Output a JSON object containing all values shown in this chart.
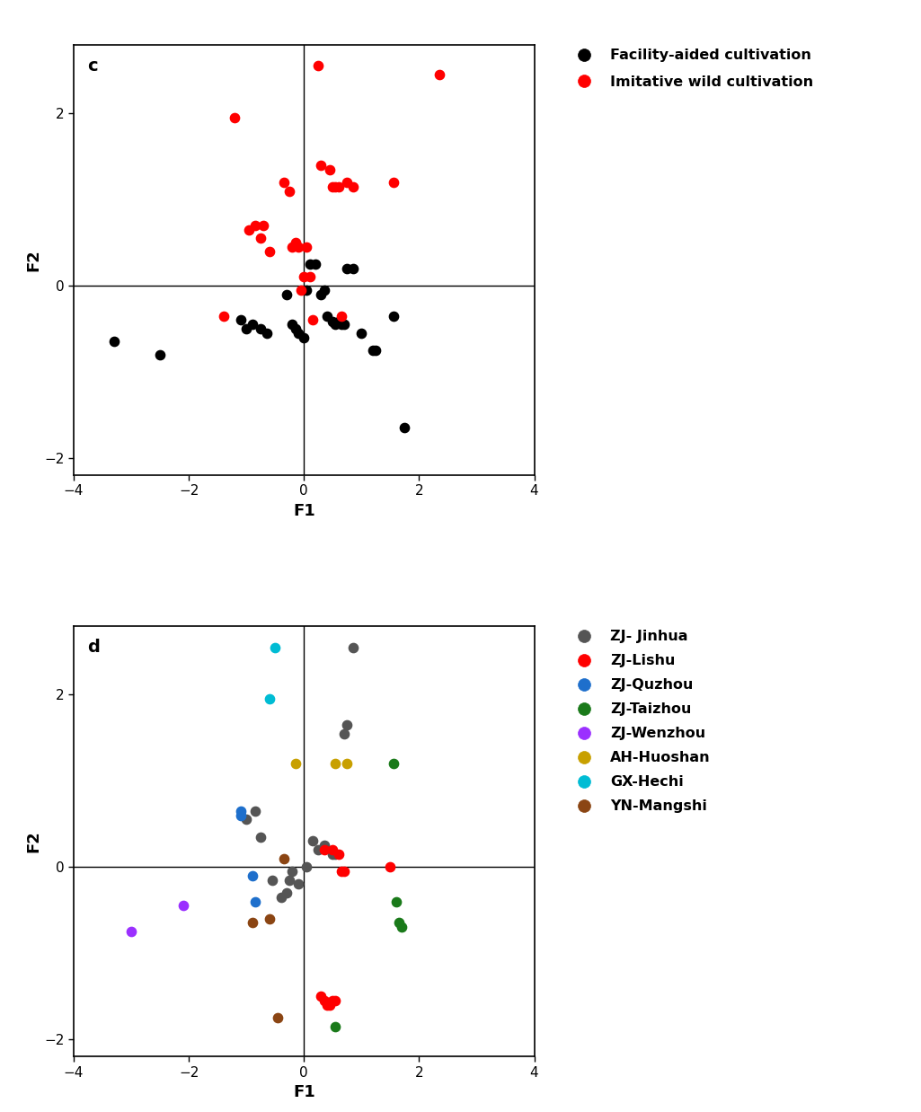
{
  "plot_c": {
    "title": "c",
    "xlabel": "F1",
    "ylabel": "F2",
    "xlim": [
      -4,
      4
    ],
    "ylim": [
      -2.2,
      2.8
    ],
    "xticks": [
      -4,
      -2,
      0,
      2,
      4
    ],
    "yticks": [
      -2,
      0,
      2
    ],
    "black_points": [
      [
        -3.3,
        -0.65
      ],
      [
        -2.5,
        -0.8
      ],
      [
        -1.1,
        -0.4
      ],
      [
        -1.0,
        -0.5
      ],
      [
        -0.9,
        -0.45
      ],
      [
        -0.75,
        -0.5
      ],
      [
        -0.65,
        -0.55
      ],
      [
        -0.3,
        -0.1
      ],
      [
        -0.2,
        -0.45
      ],
      [
        -0.15,
        -0.5
      ],
      [
        -0.1,
        -0.55
      ],
      [
        0.0,
        -0.6
      ],
      [
        0.05,
        -0.05
      ],
      [
        0.1,
        0.25
      ],
      [
        0.2,
        0.25
      ],
      [
        0.3,
        -0.1
      ],
      [
        0.35,
        -0.05
      ],
      [
        0.4,
        -0.35
      ],
      [
        0.5,
        -0.42
      ],
      [
        0.55,
        -0.45
      ],
      [
        0.6,
        -0.42
      ],
      [
        0.65,
        -0.45
      ],
      [
        0.7,
        -0.45
      ],
      [
        0.75,
        0.2
      ],
      [
        0.85,
        0.2
      ],
      [
        1.0,
        -0.55
      ],
      [
        1.2,
        -0.75
      ],
      [
        1.25,
        -0.75
      ],
      [
        1.55,
        -0.35
      ],
      [
        1.75,
        -1.65
      ]
    ],
    "red_points": [
      [
        -1.4,
        -0.35
      ],
      [
        -1.2,
        1.95
      ],
      [
        -0.95,
        0.65
      ],
      [
        -0.85,
        0.7
      ],
      [
        -0.75,
        0.55
      ],
      [
        -0.7,
        0.7
      ],
      [
        -0.6,
        0.4
      ],
      [
        -0.35,
        1.2
      ],
      [
        -0.25,
        1.1
      ],
      [
        -0.2,
        0.45
      ],
      [
        -0.15,
        0.5
      ],
      [
        -0.1,
        0.45
      ],
      [
        -0.05,
        -0.05
      ],
      [
        0.0,
        0.1
      ],
      [
        0.05,
        0.45
      ],
      [
        0.1,
        0.1
      ],
      [
        0.15,
        -0.4
      ],
      [
        0.25,
        2.55
      ],
      [
        0.3,
        1.4
      ],
      [
        0.45,
        1.35
      ],
      [
        0.5,
        1.15
      ],
      [
        0.55,
        1.15
      ],
      [
        0.6,
        1.15
      ],
      [
        0.65,
        -0.35
      ],
      [
        0.75,
        1.2
      ],
      [
        0.85,
        1.15
      ],
      [
        1.55,
        1.2
      ],
      [
        2.35,
        2.45
      ]
    ],
    "legend_black": "Facility-aided cultivation",
    "legend_red": "Imitative wild cultivation"
  },
  "plot_d": {
    "title": "d",
    "xlabel": "F1",
    "ylabel": "F2",
    "xlim": [
      -4,
      4
    ],
    "ylim": [
      -2.2,
      2.8
    ],
    "xticks": [
      -4,
      -2,
      0,
      2,
      4
    ],
    "yticks": [
      -2,
      0,
      2
    ],
    "groups": {
      "ZJ- Jinhua": {
        "color": "#555555",
        "points": [
          [
            -1.0,
            0.55
          ],
          [
            -0.85,
            0.65
          ],
          [
            -0.75,
            0.35
          ],
          [
            -0.55,
            -0.15
          ],
          [
            -0.4,
            -0.35
          ],
          [
            -0.3,
            -0.3
          ],
          [
            -0.25,
            -0.15
          ],
          [
            -0.2,
            -0.05
          ],
          [
            -0.1,
            -0.2
          ],
          [
            0.05,
            0.0
          ],
          [
            0.15,
            0.3
          ],
          [
            0.25,
            0.2
          ],
          [
            0.35,
            0.25
          ],
          [
            0.5,
            0.15
          ],
          [
            0.55,
            0.15
          ],
          [
            0.7,
            1.55
          ],
          [
            0.75,
            1.65
          ],
          [
            0.85,
            2.55
          ]
        ]
      },
      "ZJ-Lishu": {
        "color": "#ff0000",
        "points": [
          [
            0.35,
            0.2
          ],
          [
            0.5,
            0.2
          ],
          [
            0.6,
            0.15
          ],
          [
            0.65,
            -0.05
          ],
          [
            0.7,
            -0.05
          ],
          [
            0.3,
            -1.5
          ],
          [
            0.35,
            -1.55
          ],
          [
            0.4,
            -1.6
          ],
          [
            0.45,
            -1.6
          ],
          [
            0.5,
            -1.55
          ],
          [
            0.55,
            -1.55
          ],
          [
            1.5,
            -0.0
          ]
        ]
      },
      "ZJ-Quzhou": {
        "color": "#1e6fcc",
        "points": [
          [
            -1.1,
            0.65
          ],
          [
            -1.1,
            0.6
          ],
          [
            -0.9,
            -0.1
          ],
          [
            -0.85,
            -0.4
          ]
        ]
      },
      "ZJ-Taizhou": {
        "color": "#1a7a1a",
        "points": [
          [
            1.55,
            1.2
          ],
          [
            1.6,
            -0.4
          ],
          [
            1.65,
            -0.65
          ],
          [
            1.7,
            -0.7
          ],
          [
            0.55,
            -1.85
          ]
        ]
      },
      "ZJ-Wenzhou": {
        "color": "#9b30ff",
        "points": [
          [
            -2.1,
            -0.45
          ],
          [
            -3.0,
            -0.75
          ]
        ]
      },
      "AH-Huoshan": {
        "color": "#c8a000",
        "points": [
          [
            -0.15,
            1.2
          ],
          [
            0.55,
            1.2
          ],
          [
            0.75,
            1.2
          ]
        ]
      },
      "GX-Hechi": {
        "color": "#00bcd4",
        "points": [
          [
            -0.5,
            2.55
          ],
          [
            -0.6,
            1.95
          ]
        ]
      },
      "YN-Mangshi": {
        "color": "#8b4513",
        "points": [
          [
            -0.35,
            0.1
          ],
          [
            -0.6,
            -0.6
          ],
          [
            -0.9,
            -0.65
          ],
          [
            -0.45,
            -1.75
          ]
        ]
      }
    },
    "legend_entries": [
      {
        "label": "ZJ- Jinhua",
        "color": "#555555"
      },
      {
        "label": "ZJ-Lishu",
        "color": "#ff0000"
      },
      {
        "label": "ZJ-Quzhou",
        "color": "#1e6fcc"
      },
      {
        "label": "ZJ-Taizhou",
        "color": "#1a7a1a"
      },
      {
        "label": "ZJ-Wenzhou",
        "color": "#9b30ff"
      },
      {
        "label": "AH-Huoshan",
        "color": "#c8a000"
      },
      {
        "label": "GX-Hechi",
        "color": "#00bcd4"
      },
      {
        "label": "YN-Mangshi",
        "color": "#8b4513"
      }
    ]
  }
}
